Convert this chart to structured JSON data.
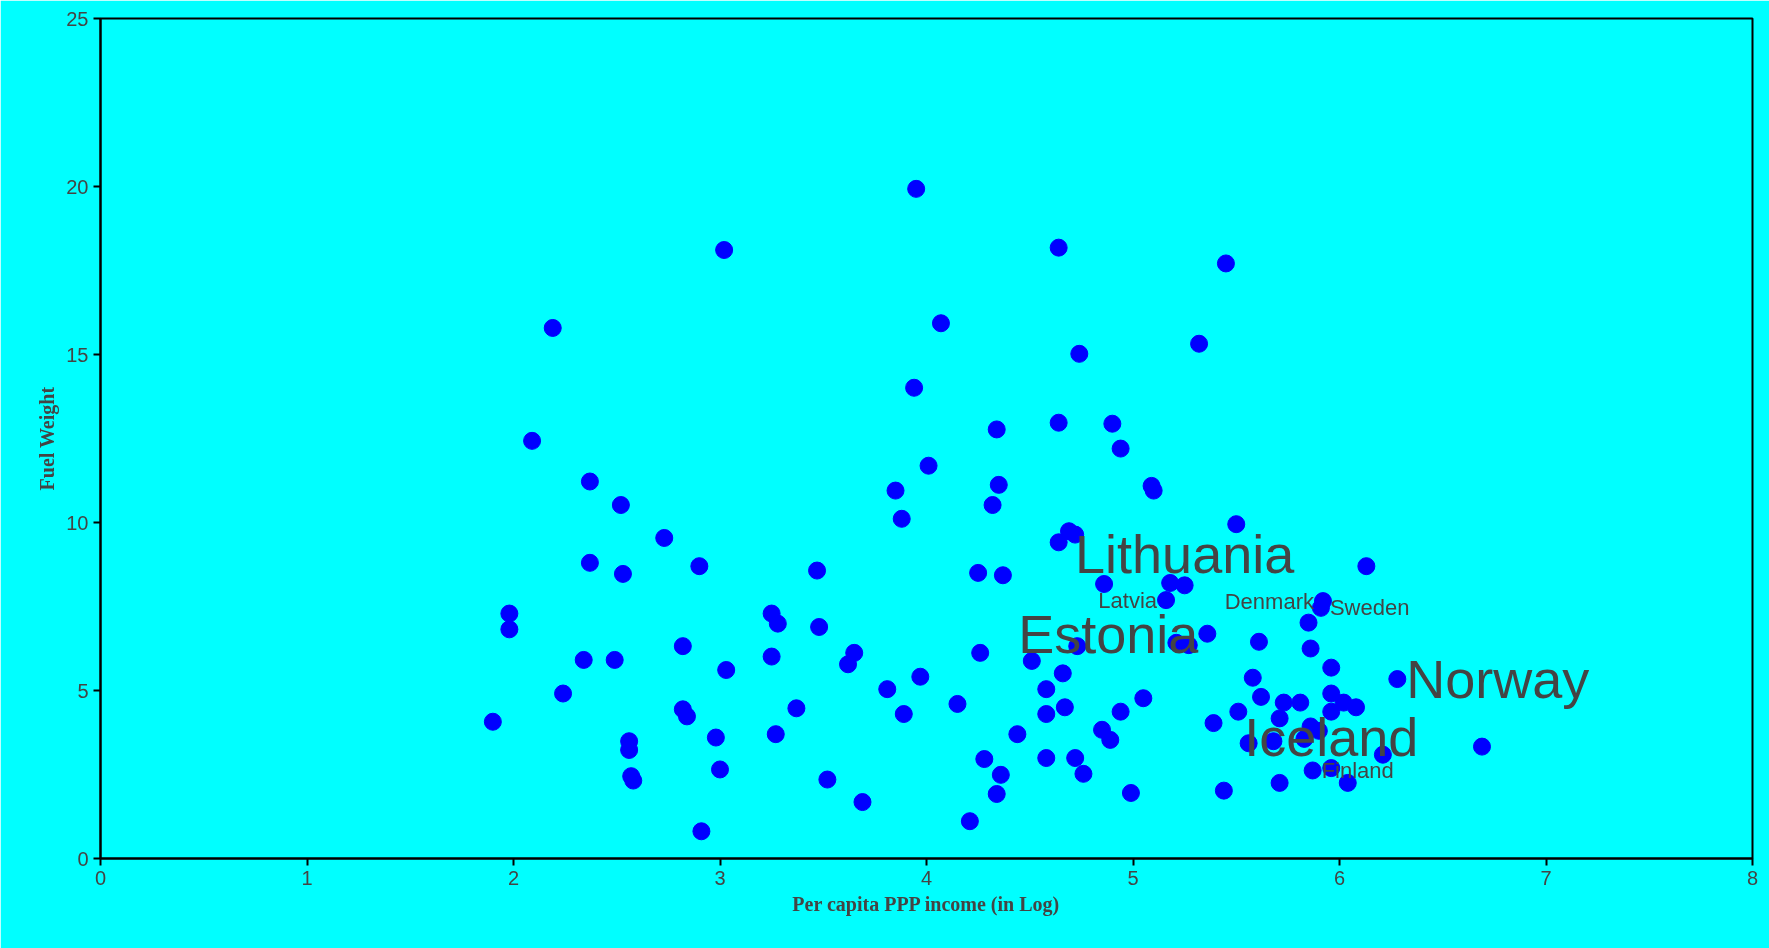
{
  "chart_data": {
    "type": "scatter",
    "xlabel": "Per capita PPP income (in Log)",
    "ylabel": "Fuel Weight",
    "xlim": [
      0,
      8
    ],
    "ylim": [
      0,
      25
    ],
    "xticks": [
      0,
      1,
      2,
      3,
      4,
      5,
      6,
      7,
      8
    ],
    "yticks": [
      0,
      5,
      10,
      15,
      20,
      25
    ],
    "grid": false,
    "marker": "circle",
    "series": [
      {
        "color": "#0000ff",
        "x": [
          1.9,
          1.98,
          1.98,
          2.09,
          2.19,
          2.24,
          2.34,
          2.37,
          2.37,
          2.49,
          2.52,
          2.53,
          2.56,
          2.56,
          2.57,
          2.58,
          2.73,
          2.82,
          2.82,
          2.84,
          2.9,
          2.91,
          2.98,
          3.0,
          3.02,
          3.03,
          3.25,
          3.25,
          3.27,
          3.28,
          3.37,
          3.47,
          3.48,
          3.52,
          3.62,
          3.65,
          3.69,
          3.81,
          3.85,
          3.88,
          3.89,
          3.94,
          3.95,
          3.97,
          4.01,
          4.07,
          4.15,
          4.21,
          4.25,
          4.26,
          4.28,
          4.32,
          4.34,
          4.34,
          4.35,
          4.36,
          4.37,
          4.44,
          4.51,
          4.58,
          4.58,
          4.58,
          4.64,
          4.64,
          4.64,
          4.66,
          4.67,
          4.69,
          4.72,
          4.72,
          4.73,
          4.74,
          4.76,
          4.85,
          4.86,
          4.89,
          4.9,
          4.94,
          4.94,
          4.99,
          5.05,
          5.09,
          5.1,
          5.16,
          5.18,
          5.21,
          5.25,
          5.27,
          5.32,
          5.36,
          5.39,
          5.44,
          5.45,
          5.5,
          5.51,
          5.56,
          5.58,
          5.61,
          5.62,
          5.68,
          5.71,
          5.71,
          5.73,
          5.81,
          5.83,
          5.85,
          5.86,
          5.87,
          5.86,
          5.9,
          5.91,
          5.92,
          5.96,
          5.96,
          5.96,
          5.96,
          6.02,
          6.04,
          6.08,
          6.13,
          6.21,
          6.28,
          6.69
        ],
        "values": [
          4.07,
          7.29,
          6.82,
          12.43,
          15.79,
          4.91,
          5.91,
          11.22,
          8.8,
          5.91,
          10.52,
          8.47,
          3.49,
          3.23,
          2.45,
          2.32,
          9.54,
          6.32,
          4.44,
          4.23,
          8.7,
          0.81,
          3.6,
          2.65,
          18.11,
          5.61,
          6.01,
          7.29,
          3.7,
          6.99,
          4.47,
          8.57,
          6.89,
          2.35,
          5.78,
          6.12,
          1.68,
          5.04,
          10.95,
          10.11,
          4.3,
          14.01,
          19.93,
          5.41,
          11.69,
          15.93,
          4.6,
          1.11,
          8.5,
          6.12,
          2.96,
          10.52,
          1.92,
          12.77,
          11.12,
          2.49,
          8.43,
          3.7,
          5.88,
          5.04,
          4.3,
          2.99,
          18.18,
          12.97,
          9.41,
          5.51,
          4.5,
          9.74,
          9.64,
          2.99,
          6.32,
          15.02,
          2.52,
          3.83,
          8.17,
          3.53,
          12.94,
          12.2,
          4.37,
          1.95,
          4.77,
          11.09,
          10.95,
          7.69,
          8.2,
          6.42,
          8.13,
          6.35,
          15.32,
          6.69,
          4.03,
          2.02,
          17.71,
          9.95,
          4.37,
          3.43,
          5.38,
          6.45,
          4.81,
          3.49,
          2.25,
          4.17,
          4.64,
          4.64,
          3.56,
          7.02,
          6.25,
          2.62,
          3.93,
          3.8,
          7.46,
          7.66,
          4.91,
          4.37,
          5.68,
          2.69,
          4.64,
          2.25,
          4.5,
          8.7,
          3.09,
          5.34,
          3.33
        ]
      }
    ],
    "annotations": [
      {
        "text": "Lithuania",
        "x": 5.25,
        "y": 8.13
      },
      {
        "text": "Estonia",
        "x": 5.36,
        "y": 6.69
      },
      {
        "text": "Norway",
        "x": 6.28,
        "y": 5.34
      },
      {
        "text": "Iceland",
        "x": 5.96,
        "y": 2.69
      },
      {
        "text": "Latvia",
        "x": 5.16,
        "y": 7.69
      },
      {
        "text": "Denmark",
        "x": 5.92,
        "y": 7.66
      },
      {
        "text": "Sweden",
        "x": 5.91,
        "y": 7.46
      },
      {
        "text": "Finland",
        "x": 5.87,
        "y": 2.62
      }
    ]
  }
}
